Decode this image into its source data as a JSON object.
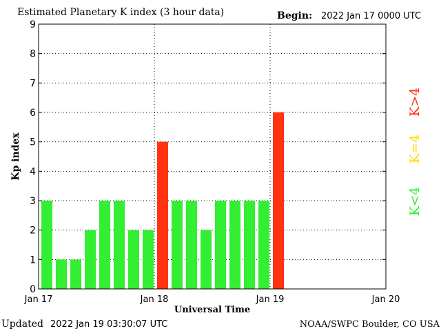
{
  "header": {
    "title": "Estimated Planetary K index (3 hour data)",
    "begin_label": "Begin:",
    "begin_value": "2022 Jan 17 0000 UTC"
  },
  "footer": {
    "updated_label": "Updated",
    "updated_value": "2022 Jan 19 03:30:07 UTC",
    "credit": "NOAA/SWPC Boulder, CO USA"
  },
  "legend": [
    {
      "label": "K<4",
      "color": "#33ee33"
    },
    {
      "label": "K=4",
      "color": "#ffdd00"
    },
    {
      "label": "K>4",
      "color": "#ff3311"
    }
  ],
  "chart_data": {
    "type": "bar",
    "title": "Estimated Planetary K index (3 hour data)",
    "xlabel": "Universal Time",
    "ylabel": "Kp index",
    "ylim": [
      0,
      9
    ],
    "yticks": [
      0,
      1,
      2,
      3,
      4,
      5,
      6,
      7,
      8,
      9
    ],
    "x_tick_labels": [
      "Jan 17",
      "Jan 18",
      "Jan 19",
      "Jan 20"
    ],
    "slots_per_day": 8,
    "total_slots": 24,
    "grid": "dotted",
    "values": [
      3,
      1,
      1,
      2,
      3,
      3,
      2,
      2,
      5,
      3,
      3,
      2,
      3,
      3,
      3,
      3,
      6
    ],
    "colors": {
      "below_4": "#33ee33",
      "equal_4": "#ffdd00",
      "above_4": "#ff3311"
    }
  }
}
